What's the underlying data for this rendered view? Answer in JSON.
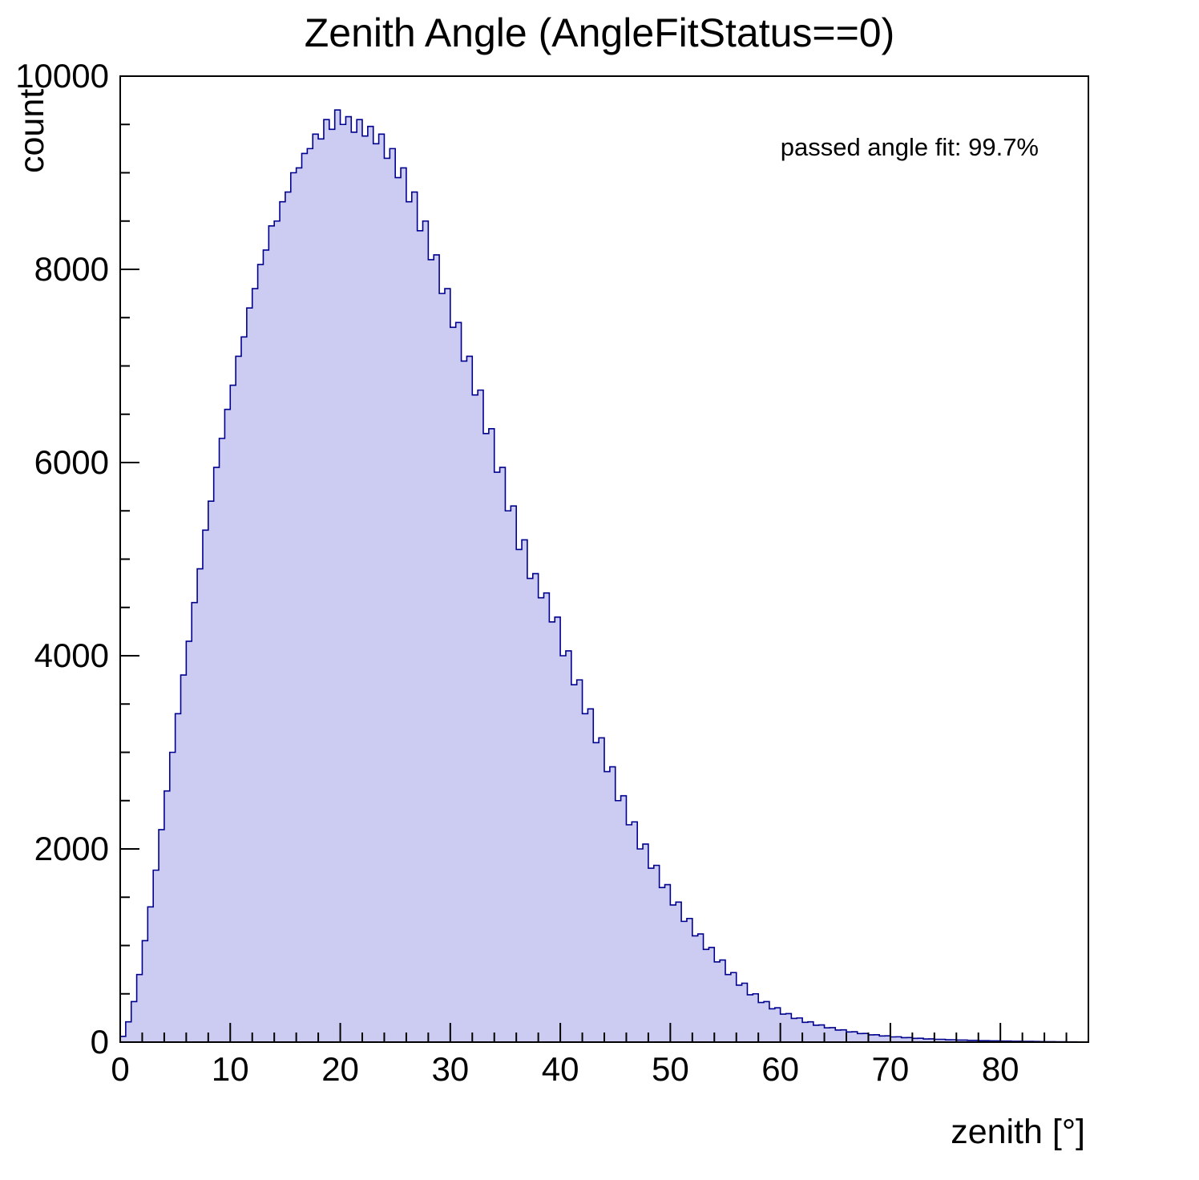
{
  "chart_data": {
    "type": "bar",
    "title": "Zenith Angle (AngleFitStatus==0)",
    "xlabel": "zenith [°]",
    "ylabel": "count",
    "annotation": "passed angle fit: 99.7%",
    "xlim": [
      0,
      88
    ],
    "ylim": [
      0,
      10000
    ],
    "bin_start": 0,
    "bin_width": 0.5,
    "x_ticks": [
      0,
      10,
      20,
      30,
      40,
      50,
      60,
      70,
      80
    ],
    "y_ticks": [
      0,
      2000,
      4000,
      6000,
      8000,
      10000
    ],
    "x_minor_step": 2,
    "y_minor_step": 500,
    "grid": false,
    "legend": "none",
    "fill_color": "#ccccf2",
    "line_color": "#00008f",
    "frame_color": "#000000",
    "values": [
      60,
      210,
      420,
      700,
      1050,
      1400,
      1780,
      2200,
      2600,
      3000,
      3400,
      3800,
      4150,
      4550,
      4900,
      5300,
      5600,
      5950,
      6250,
      6550,
      6800,
      7100,
      7300,
      7600,
      7800,
      8050,
      8200,
      8450,
      8500,
      8700,
      8800,
      9000,
      9050,
      9200,
      9250,
      9400,
      9350,
      9550,
      9450,
      9650,
      9500,
      9580,
      9420,
      9550,
      9380,
      9480,
      9300,
      9400,
      9150,
      9250,
      8950,
      9050,
      8700,
      8800,
      8400,
      8500,
      8100,
      8150,
      7750,
      7800,
      7400,
      7450,
      7050,
      7100,
      6700,
      6750,
      6300,
      6350,
      5900,
      5950,
      5500,
      5550,
      5100,
      5200,
      4800,
      4850,
      4600,
      4650,
      4350,
      4400,
      4000,
      4050,
      3700,
      3750,
      3400,
      3450,
      3100,
      3150,
      2800,
      2850,
      2500,
      2550,
      2250,
      2280,
      2000,
      2050,
      1800,
      1830,
      1600,
      1630,
      1420,
      1450,
      1250,
      1280,
      1100,
      1120,
      960,
      980,
      830,
      850,
      700,
      720,
      590,
      610,
      490,
      500,
      410,
      420,
      345,
      355,
      290,
      295,
      245,
      250,
      205,
      210,
      175,
      178,
      148,
      150,
      125,
      127,
      105,
      107,
      89,
      90,
      75,
      76,
      64,
      65,
      54,
      55,
      46,
      47,
      39,
      40,
      33,
      34,
      29,
      29,
      24,
      25,
      21,
      21,
      18,
      18,
      15,
      15,
      13,
      13,
      11,
      11,
      9,
      9,
      8,
      8,
      7,
      6,
      5,
      5,
      4,
      4,
      3,
      3,
      2,
      2
    ]
  }
}
